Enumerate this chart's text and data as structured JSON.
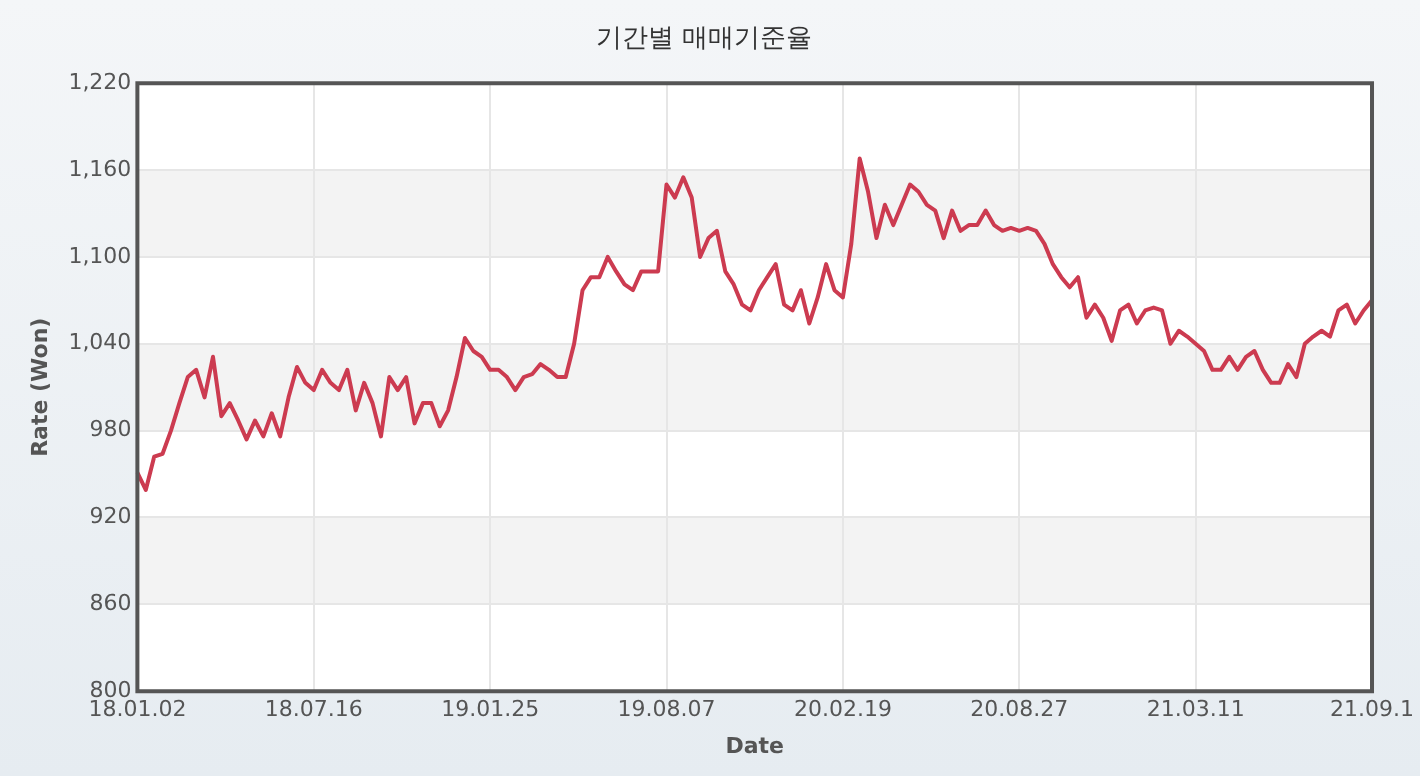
{
  "chart_data": {
    "type": "line",
    "title": "기간별 매매기준율",
    "xlabel": "Date",
    "ylabel": "Rate (Won)",
    "categories": [
      "18.01.02",
      null,
      null,
      null,
      null,
      null,
      null,
      null,
      null,
      null,
      null,
      null,
      null,
      null,
      null,
      null,
      null,
      null,
      null,
      null,
      null,
      "18.07.16",
      null,
      null,
      null,
      null,
      null,
      null,
      null,
      null,
      null,
      null,
      null,
      null,
      null,
      null,
      null,
      null,
      null,
      null,
      null,
      null,
      "19.01.25",
      null,
      null,
      null,
      null,
      null,
      null,
      null,
      null,
      null,
      null,
      null,
      null,
      null,
      null,
      null,
      null,
      null,
      null,
      null,
      null,
      "19.08.07",
      null,
      null,
      null,
      null,
      null,
      null,
      null,
      null,
      null,
      null,
      null,
      null,
      null,
      null,
      null,
      null,
      null,
      null,
      null,
      null,
      "20.02.19",
      null,
      null,
      null,
      null,
      null,
      null,
      null,
      null,
      null,
      null,
      null,
      null,
      null,
      null,
      null,
      null,
      null,
      null,
      null,
      null,
      "20.08.27",
      null,
      null,
      null,
      null,
      null,
      null,
      null,
      null,
      null,
      null,
      null,
      null,
      null,
      null,
      null,
      null,
      null,
      null,
      null,
      null,
      "21.03.11",
      null,
      null,
      null,
      null,
      null,
      null,
      null,
      null,
      null,
      null,
      null,
      null,
      null,
      null,
      null,
      null,
      null,
      null,
      null,
      null,
      "21.09.1"
    ],
    "series": [
      {
        "color": "#cc3b50",
        "values": [
          951,
          939,
          962,
          964,
          980,
          999,
          1017,
          1022,
          1003,
          1031,
          990,
          999,
          987,
          974,
          987,
          976,
          992,
          976,
          1003,
          1024,
          1013,
          1008,
          1022,
          1013,
          1008,
          1022,
          994,
          1013,
          999,
          976,
          1017,
          1008,
          1017,
          985,
          999,
          999,
          983,
          994,
          1017,
          1044,
          1035,
          1031,
          1022,
          1022,
          1017,
          1008,
          1017,
          1019,
          1026,
          1022,
          1017,
          1017,
          1040,
          1077,
          1086,
          1086,
          1100,
          1090,
          1081,
          1077,
          1090,
          1090,
          1090,
          1150,
          1141,
          1155,
          1141,
          1100,
          1113,
          1118,
          1090,
          1081,
          1067,
          1063,
          1077,
          1086,
          1095,
          1067,
          1063,
          1077,
          1054,
          1072,
          1095,
          1077,
          1072,
          1109,
          1168,
          1145,
          1113,
          1136,
          1122,
          1136,
          1150,
          1145,
          1136,
          1132,
          1113,
          1132,
          1118,
          1122,
          1122,
          1132,
          1122,
          1118,
          1120,
          1118,
          1120,
          1118,
          1109,
          1095,
          1086,
          1079,
          1086,
          1058,
          1067,
          1058,
          1042,
          1063,
          1067,
          1054,
          1063,
          1065,
          1063,
          1040,
          1049,
          1045,
          1040,
          1035,
          1022,
          1022,
          1031,
          1022,
          1031,
          1035,
          1022,
          1013,
          1013,
          1026,
          1017,
          1040,
          1045,
          1049,
          1045,
          1063,
          1067,
          1054,
          1063,
          1070
        ]
      }
    ],
    "ylim": [
      800,
      1220
    ],
    "yticks": [
      800,
      860,
      920,
      980,
      {
        "value": 1040,
        "label": "1,040"
      },
      {
        "value": 1100,
        "label": "1,100"
      },
      {
        "value": 1160,
        "label": "1,160"
      },
      {
        "value": 1220,
        "label": "1,220"
      }
    ],
    "grid": true,
    "legend": false,
    "marker": "none",
    "line_style": "solid"
  }
}
